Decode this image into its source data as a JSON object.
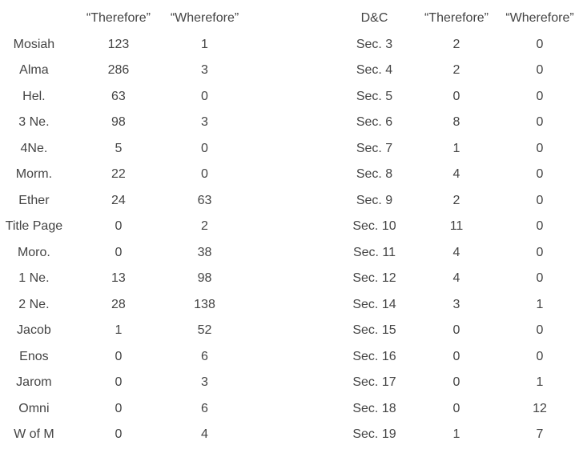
{
  "left_table": {
    "headers": [
      "",
      "“Therefore”",
      "“Wherefore”"
    ],
    "rows": [
      [
        "Mosiah",
        "123",
        "1"
      ],
      [
        "Alma",
        "286",
        "3"
      ],
      [
        "Hel.",
        "63",
        "0"
      ],
      [
        "3 Ne.",
        "98",
        "3"
      ],
      [
        "4Ne.",
        "5",
        "0"
      ],
      [
        "Morm.",
        "22",
        "0"
      ],
      [
        "Ether",
        "24",
        "63"
      ],
      [
        "Title Page",
        "0",
        "2"
      ],
      [
        "Moro.",
        "0",
        "38"
      ],
      [
        "1 Ne.",
        "13",
        "98"
      ],
      [
        "2 Ne.",
        "28",
        "138"
      ],
      [
        "Jacob",
        "1",
        "52"
      ],
      [
        "Enos",
        "0",
        "6"
      ],
      [
        "Jarom",
        "0",
        "3"
      ],
      [
        "Omni",
        "0",
        "6"
      ],
      [
        "W of M",
        "0",
        "4"
      ]
    ]
  },
  "right_table": {
    "headers": [
      "D&C",
      "“Therefore”",
      "“Wherefore”"
    ],
    "rows": [
      [
        "Sec. 3",
        "2",
        "0"
      ],
      [
        "Sec. 4",
        "2",
        "0"
      ],
      [
        "Sec. 5",
        "0",
        "0"
      ],
      [
        "Sec. 6",
        "8",
        "0"
      ],
      [
        "Sec. 7",
        "1",
        "0"
      ],
      [
        "Sec. 8",
        "4",
        "0"
      ],
      [
        "Sec. 9",
        "2",
        "0"
      ],
      [
        "Sec. 10",
        "11",
        "0"
      ],
      [
        "Sec. 11",
        "4",
        "0"
      ],
      [
        "Sec. 12",
        "4",
        "0"
      ],
      [
        "Sec. 14",
        "3",
        "1"
      ],
      [
        "Sec. 15",
        "0",
        "0"
      ],
      [
        "Sec. 16",
        "0",
        "0"
      ],
      [
        "Sec. 17",
        "0",
        "1"
      ],
      [
        "Sec. 18",
        "0",
        "12"
      ],
      [
        "Sec. 19",
        "1",
        "7"
      ]
    ]
  }
}
